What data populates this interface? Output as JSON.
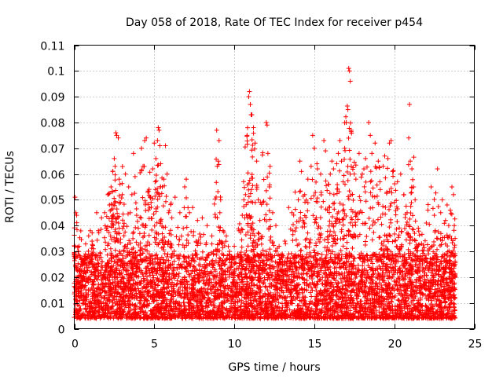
{
  "chart_data": {
    "type": "scatter",
    "title": "Day 058 of 2018, Rate Of TEC Index for receiver p454",
    "xlabel": "GPS time / hours",
    "ylabel": "ROTI / TECUs",
    "xlim": [
      0,
      25
    ],
    "ylim": [
      0,
      0.11
    ],
    "x_ticks": [
      0,
      5,
      10,
      15,
      20,
      25
    ],
    "x_tick_labels": [
      "0",
      "5",
      "10",
      "15",
      "20",
      "25"
    ],
    "y_ticks": [
      0,
      0.01,
      0.02,
      0.03,
      0.04,
      0.05,
      0.06,
      0.07,
      0.08,
      0.09,
      0.1,
      0.11
    ],
    "y_tick_labels": [
      "0",
      "0.01",
      "0.02",
      "0.03",
      "0.04",
      "0.05",
      "0.06",
      "0.07",
      "0.08",
      "0.09",
      "0.1",
      "0.11"
    ],
    "grid": true,
    "marker": "+",
    "series_color": "#ff0000",
    "series": [
      {
        "name": "ROTI",
        "points": [
          [
            0.05,
            0.051
          ],
          [
            0.1,
            0.045
          ],
          [
            0.15,
            0.044
          ],
          [
            0.3,
            0.032
          ],
          [
            0.5,
            0.025
          ],
          [
            0.7,
            0.029
          ],
          [
            0.9,
            0.036
          ],
          [
            1.0,
            0.038
          ],
          [
            1.2,
            0.031
          ],
          [
            1.4,
            0.045
          ],
          [
            1.7,
            0.043
          ],
          [
            1.9,
            0.045
          ],
          [
            2.0,
            0.039
          ],
          [
            2.1,
            0.052
          ],
          [
            2.2,
            0.048
          ],
          [
            2.3,
            0.055
          ],
          [
            2.4,
            0.061
          ],
          [
            2.5,
            0.066
          ],
          [
            2.55,
            0.063
          ],
          [
            2.6,
            0.076
          ],
          [
            2.65,
            0.075
          ],
          [
            2.75,
            0.074
          ],
          [
            2.8,
            0.058
          ],
          [
            2.9,
            0.049
          ],
          [
            3.0,
            0.052
          ],
          [
            3.2,
            0.06
          ],
          [
            3.4,
            0.055
          ],
          [
            3.5,
            0.045
          ],
          [
            3.6,
            0.052
          ],
          [
            3.7,
            0.068
          ],
          [
            3.8,
            0.059
          ],
          [
            3.9,
            0.044
          ],
          [
            4.0,
            0.039
          ],
          [
            4.2,
            0.07
          ],
          [
            4.3,
            0.063
          ],
          [
            4.4,
            0.073
          ],
          [
            4.5,
            0.074
          ],
          [
            4.6,
            0.053
          ],
          [
            4.8,
            0.049
          ],
          [
            4.9,
            0.062
          ],
          [
            5.0,
            0.072
          ],
          [
            5.1,
            0.066
          ],
          [
            5.2,
            0.073
          ],
          [
            5.25,
            0.078
          ],
          [
            5.3,
            0.077
          ],
          [
            5.35,
            0.071
          ],
          [
            5.4,
            0.064
          ],
          [
            5.5,
            0.055
          ],
          [
            5.6,
            0.058
          ],
          [
            5.7,
            0.071
          ],
          [
            5.8,
            0.06
          ],
          [
            5.9,
            0.045
          ],
          [
            6.1,
            0.043
          ],
          [
            6.3,
            0.051
          ],
          [
            6.6,
            0.045
          ],
          [
            6.9,
            0.055
          ],
          [
            7.0,
            0.058
          ],
          [
            7.2,
            0.045
          ],
          [
            7.4,
            0.047
          ],
          [
            7.7,
            0.042
          ],
          [
            8.0,
            0.043
          ],
          [
            8.3,
            0.04
          ],
          [
            8.6,
            0.036
          ],
          [
            8.9,
            0.077
          ],
          [
            9.0,
            0.065
          ],
          [
            9.05,
            0.073
          ],
          [
            9.1,
            0.045
          ],
          [
            9.15,
            0.05
          ],
          [
            9.3,
            0.038
          ],
          [
            9.5,
            0.036
          ],
          [
            9.7,
            0.03
          ],
          [
            10.0,
            0.032
          ],
          [
            10.3,
            0.038
          ],
          [
            10.5,
            0.044
          ],
          [
            10.6,
            0.05
          ],
          [
            10.7,
            0.052
          ],
          [
            10.8,
            0.075
          ],
          [
            10.9,
            0.09
          ],
          [
            10.95,
            0.092
          ],
          [
            11.0,
            0.087
          ],
          [
            11.05,
            0.083
          ],
          [
            11.1,
            0.083
          ],
          [
            11.2,
            0.078
          ],
          [
            11.3,
            0.072
          ],
          [
            11.4,
            0.065
          ],
          [
            11.5,
            0.05
          ],
          [
            11.6,
            0.042
          ],
          [
            11.7,
            0.035
          ],
          [
            11.8,
            0.049
          ],
          [
            12.0,
            0.08
          ],
          [
            12.05,
            0.079
          ],
          [
            12.1,
            0.068
          ],
          [
            12.2,
            0.055
          ],
          [
            12.4,
            0.045
          ],
          [
            12.6,
            0.04
          ],
          [
            12.8,
            0.032
          ],
          [
            13.0,
            0.029
          ],
          [
            13.2,
            0.033
          ],
          [
            13.4,
            0.047
          ],
          [
            13.6,
            0.045
          ],
          [
            13.8,
            0.053
          ],
          [
            14.0,
            0.05
          ],
          [
            14.1,
            0.065
          ],
          [
            14.2,
            0.061
          ],
          [
            14.4,
            0.052
          ],
          [
            14.6,
            0.058
          ],
          [
            14.8,
            0.063
          ],
          [
            14.9,
            0.075
          ],
          [
            15.0,
            0.07
          ],
          [
            15.2,
            0.062
          ],
          [
            15.4,
            0.06
          ],
          [
            15.6,
            0.073
          ],
          [
            15.7,
            0.069
          ],
          [
            15.9,
            0.056
          ],
          [
            16.0,
            0.06
          ],
          [
            16.1,
            0.065
          ],
          [
            16.2,
            0.062
          ],
          [
            16.4,
            0.064
          ],
          [
            16.5,
            0.068
          ],
          [
            16.6,
            0.073
          ],
          [
            16.7,
            0.065
          ],
          [
            16.8,
            0.057
          ],
          [
            16.9,
            0.07
          ],
          [
            17.0,
            0.08
          ],
          [
            17.1,
            0.085
          ],
          [
            17.15,
            0.101
          ],
          [
            17.2,
            0.1
          ],
          [
            17.25,
            0.096
          ],
          [
            17.3,
            0.077
          ],
          [
            17.5,
            0.06
          ],
          [
            17.6,
            0.058
          ],
          [
            17.8,
            0.068
          ],
          [
            18.0,
            0.06
          ],
          [
            18.1,
            0.062
          ],
          [
            18.2,
            0.066
          ],
          [
            18.4,
            0.08
          ],
          [
            18.5,
            0.075
          ],
          [
            18.6,
            0.068
          ],
          [
            18.8,
            0.072
          ],
          [
            19.0,
            0.065
          ],
          [
            19.1,
            0.057
          ],
          [
            19.3,
            0.063
          ],
          [
            19.4,
            0.067
          ],
          [
            19.6,
            0.066
          ],
          [
            19.7,
            0.072
          ],
          [
            19.8,
            0.073
          ],
          [
            19.9,
            0.061
          ],
          [
            20.0,
            0.049
          ],
          [
            20.2,
            0.057
          ],
          [
            20.4,
            0.06
          ],
          [
            20.6,
            0.052
          ],
          [
            20.8,
            0.045
          ],
          [
            20.9,
            0.074
          ],
          [
            20.95,
            0.087
          ],
          [
            21.0,
            0.065
          ],
          [
            21.1,
            0.062
          ],
          [
            21.2,
            0.055
          ],
          [
            21.3,
            0.05
          ],
          [
            21.5,
            0.039
          ],
          [
            21.7,
            0.033
          ],
          [
            22.0,
            0.041
          ],
          [
            22.1,
            0.046
          ],
          [
            22.3,
            0.055
          ],
          [
            22.5,
            0.044
          ],
          [
            22.7,
            0.062
          ],
          [
            22.9,
            0.045
          ],
          [
            23.0,
            0.05
          ],
          [
            23.2,
            0.042
          ],
          [
            23.3,
            0.048
          ],
          [
            23.4,
            0.04
          ],
          [
            23.5,
            0.046
          ],
          [
            23.6,
            0.055
          ],
          [
            23.7,
            0.052
          ],
          [
            23.75,
            0.04
          ],
          [
            23.8,
            0.035
          ]
        ],
        "baseline_band": {
          "x_range": [
            0,
            23.8
          ],
          "typical_range": [
            0.004,
            0.022
          ],
          "note": "dense cloud of measurements across the whole day"
        }
      }
    ]
  }
}
